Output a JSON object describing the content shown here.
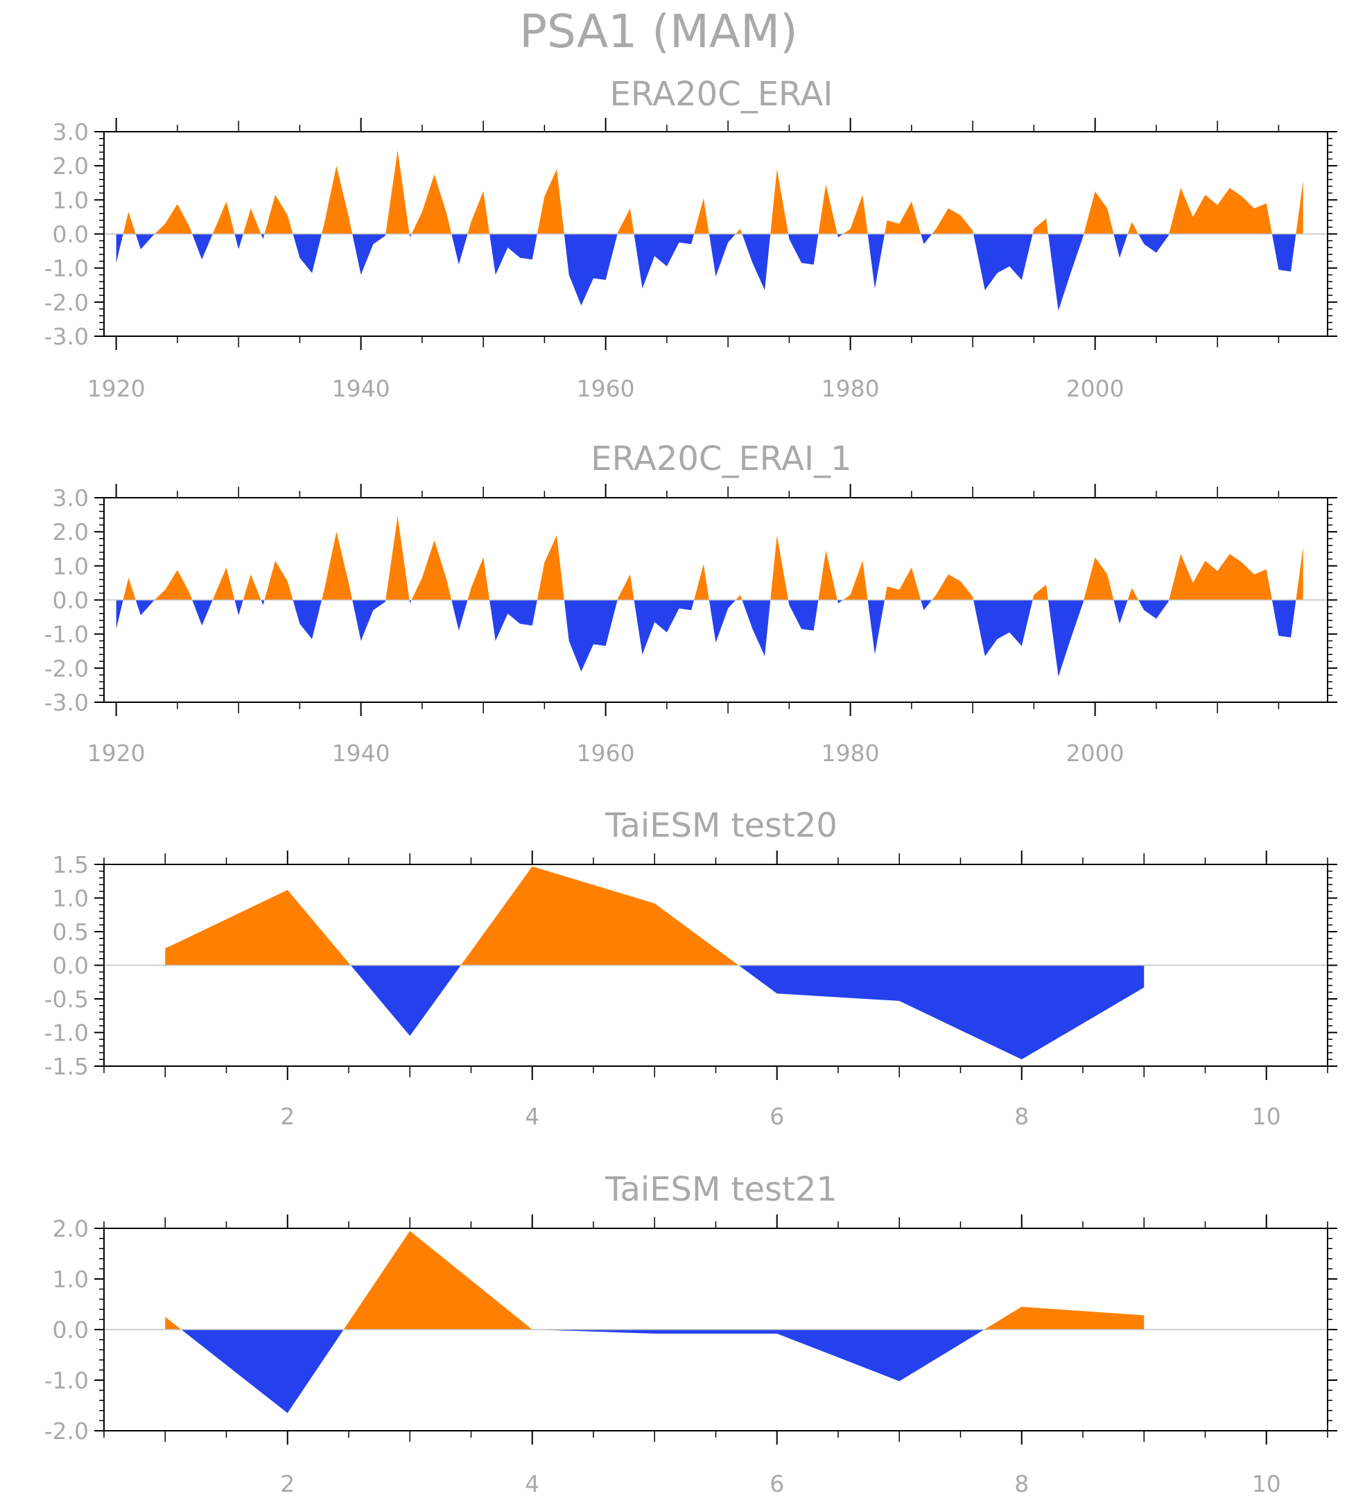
{
  "title": "PSA1 (MAM)",
  "colors": {
    "positive": "#FF8000",
    "negative": "#2541EE",
    "axis": "#000000",
    "text": "#A9A9A9",
    "zero_line": "#C0C0C0"
  },
  "chart_data": [
    {
      "type": "area",
      "title": "ERA20C_ERAI",
      "xlim": [
        1919,
        2019
      ],
      "ylim": [
        -3.0,
        3.0
      ],
      "xticks": [
        1920,
        1940,
        1960,
        1980,
        2000
      ],
      "xtick_labels": [
        "1920",
        "1940",
        "1960",
        "1980",
        "2000"
      ],
      "yticks": [
        -3.0,
        -2.0,
        -1.0,
        0.0,
        1.0,
        2.0,
        3.0
      ],
      "ytick_labels": [
        "-3.0",
        "-2.0",
        "-1.0",
        "0.0",
        "1.0",
        "2.0",
        "3.0"
      ],
      "x": [
        1920,
        1921,
        1922,
        1923,
        1924,
        1925,
        1926,
        1927,
        1928,
        1929,
        1930,
        1931,
        1932,
        1933,
        1934,
        1935,
        1936,
        1937,
        1938,
        1939,
        1940,
        1941,
        1942,
        1943,
        1944,
        1945,
        1946,
        1947,
        1948,
        1949,
        1950,
        1951,
        1952,
        1953,
        1954,
        1955,
        1956,
        1957,
        1958,
        1959,
        1960,
        1961,
        1962,
        1963,
        1964,
        1965,
        1966,
        1967,
        1968,
        1969,
        1970,
        1971,
        1972,
        1973,
        1974,
        1975,
        1976,
        1977,
        1978,
        1979,
        1980,
        1981,
        1982,
        1983,
        1984,
        1985,
        1986,
        1987,
        1988,
        1989,
        1990,
        1991,
        1992,
        1993,
        1994,
        1995,
        1996,
        1997,
        1998,
        1999,
        2000,
        2001,
        2002,
        2003,
        2004,
        2005,
        2006,
        2007,
        2008,
        2009,
        2010,
        2011,
        2012,
        2013,
        2014,
        2015,
        2016,
        2017
      ],
      "values": [
        -0.85,
        0.65,
        -0.45,
        -0.05,
        0.3,
        0.88,
        0.2,
        -0.75,
        0.1,
        0.95,
        -0.45,
        0.75,
        -0.15,
        1.15,
        0.55,
        -0.7,
        -1.15,
        0.3,
        2.0,
        0.5,
        -1.2,
        -0.3,
        -0.05,
        2.45,
        -0.1,
        0.65,
        1.75,
        0.6,
        -0.9,
        0.35,
        1.25,
        -1.2,
        -0.4,
        -0.7,
        -0.75,
        1.1,
        1.9,
        -1.2,
        -2.1,
        -1.3,
        -1.35,
        0.05,
        0.75,
        -1.6,
        -0.65,
        -0.95,
        -0.25,
        -0.3,
        1.05,
        -1.25,
        -0.25,
        0.15,
        -0.85,
        -1.65,
        1.9,
        -0.15,
        -0.85,
        -0.9,
        1.45,
        -0.1,
        0.15,
        1.15,
        -1.6,
        0.4,
        0.3,
        0.95,
        -0.3,
        0.15,
        0.75,
        0.55,
        0.1,
        -1.65,
        -1.15,
        -0.95,
        -1.35,
        0.15,
        0.45,
        -2.25,
        -1.15,
        -0.1,
        1.25,
        0.75,
        -0.7,
        0.35,
        -0.3,
        -0.55,
        -0.05,
        1.35,
        0.5,
        1.15,
        0.85,
        1.35,
        1.1,
        0.75,
        0.9,
        -1.05,
        -1.1,
        1.55
      ]
    },
    {
      "type": "area",
      "title": "ERA20C_ERAI_1",
      "xlim": [
        1919,
        2019
      ],
      "ylim": [
        -3.0,
        3.0
      ],
      "xticks": [
        1920,
        1940,
        1960,
        1980,
        2000
      ],
      "xtick_labels": [
        "1920",
        "1940",
        "1960",
        "1980",
        "2000"
      ],
      "yticks": [
        -3.0,
        -2.0,
        -1.0,
        0.0,
        1.0,
        2.0,
        3.0
      ],
      "ytick_labels": [
        "-3.0",
        "-2.0",
        "-1.0",
        "0.0",
        "1.0",
        "2.0",
        "3.0"
      ],
      "x": [
        1920,
        1921,
        1922,
        1923,
        1924,
        1925,
        1926,
        1927,
        1928,
        1929,
        1930,
        1931,
        1932,
        1933,
        1934,
        1935,
        1936,
        1937,
        1938,
        1939,
        1940,
        1941,
        1942,
        1943,
        1944,
        1945,
        1946,
        1947,
        1948,
        1949,
        1950,
        1951,
        1952,
        1953,
        1954,
        1955,
        1956,
        1957,
        1958,
        1959,
        1960,
        1961,
        1962,
        1963,
        1964,
        1965,
        1966,
        1967,
        1968,
        1969,
        1970,
        1971,
        1972,
        1973,
        1974,
        1975,
        1976,
        1977,
        1978,
        1979,
        1980,
        1981,
        1982,
        1983,
        1984,
        1985,
        1986,
        1987,
        1988,
        1989,
        1990,
        1991,
        1992,
        1993,
        1994,
        1995,
        1996,
        1997,
        1998,
        1999,
        2000,
        2001,
        2002,
        2003,
        2004,
        2005,
        2006,
        2007,
        2008,
        2009,
        2010,
        2011,
        2012,
        2013,
        2014,
        2015,
        2016,
        2017
      ],
      "values": [
        -0.85,
        0.65,
        -0.45,
        -0.05,
        0.3,
        0.88,
        0.2,
        -0.75,
        0.1,
        0.95,
        -0.45,
        0.75,
        -0.15,
        1.15,
        0.55,
        -0.7,
        -1.15,
        0.3,
        2.0,
        0.5,
        -1.2,
        -0.3,
        -0.05,
        2.45,
        -0.1,
        0.65,
        1.75,
        0.6,
        -0.9,
        0.35,
        1.25,
        -1.2,
        -0.4,
        -0.7,
        -0.75,
        1.1,
        1.9,
        -1.2,
        -2.1,
        -1.3,
        -1.35,
        0.05,
        0.75,
        -1.6,
        -0.65,
        -0.95,
        -0.25,
        -0.3,
        1.05,
        -1.25,
        -0.25,
        0.15,
        -0.85,
        -1.65,
        1.9,
        -0.15,
        -0.85,
        -0.9,
        1.45,
        -0.1,
        0.15,
        1.15,
        -1.6,
        0.4,
        0.3,
        0.95,
        -0.3,
        0.15,
        0.75,
        0.55,
        0.1,
        -1.65,
        -1.15,
        -0.95,
        -1.35,
        0.15,
        0.45,
        -2.25,
        -1.15,
        -0.1,
        1.25,
        0.75,
        -0.7,
        0.35,
        -0.3,
        -0.55,
        -0.05,
        1.35,
        0.5,
        1.15,
        0.85,
        1.35,
        1.1,
        0.75,
        0.9,
        -1.05,
        -1.1,
        1.55
      ]
    },
    {
      "type": "area",
      "title": "TaiESM test20",
      "xlim": [
        0.5,
        10.5
      ],
      "ylim": [
        -1.5,
        1.5
      ],
      "xticks": [
        2,
        4,
        6,
        8,
        10
      ],
      "xtick_labels": [
        "2",
        "4",
        "6",
        "8",
        "10"
      ],
      "yticks": [
        -1.5,
        -1.0,
        -0.5,
        0.0,
        0.5,
        1.0,
        1.5
      ],
      "ytick_labels": [
        "-1.5",
        "-1.0",
        "-0.5",
        "0.0",
        "0.5",
        "1.0",
        "1.5"
      ],
      "x": [
        1,
        2,
        3,
        4,
        5,
        6,
        7,
        8,
        9
      ],
      "values": [
        0.25,
        1.12,
        -1.05,
        1.47,
        0.92,
        -0.42,
        -0.53,
        -1.4,
        -0.33
      ]
    },
    {
      "type": "area",
      "title": "TaiESM test21",
      "xlim": [
        0.5,
        10.5
      ],
      "ylim": [
        -2.0,
        2.0
      ],
      "xticks": [
        2,
        4,
        6,
        8,
        10
      ],
      "xtick_labels": [
        "2",
        "4",
        "6",
        "8",
        "10"
      ],
      "yticks": [
        -2.0,
        -1.0,
        0.0,
        1.0,
        2.0
      ],
      "ytick_labels": [
        "-2.0",
        "-1.0",
        "0.0",
        "1.0",
        "2.0"
      ],
      "x": [
        1,
        2,
        3,
        4,
        5,
        6,
        7,
        8,
        9
      ],
      "values": [
        0.25,
        -1.65,
        1.95,
        0.0,
        -0.08,
        -0.08,
        -1.02,
        0.45,
        0.28
      ]
    }
  ]
}
